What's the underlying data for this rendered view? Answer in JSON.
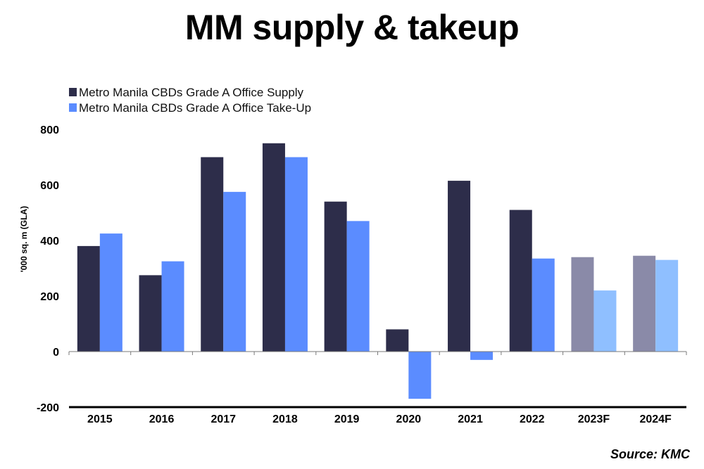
{
  "chart_data": {
    "type": "bar",
    "title": "MM supply & takeup",
    "ylabel": "'000 sq. m (GLA)",
    "xlabel": "",
    "ylim": [
      -200,
      800
    ],
    "yticks": [
      -200,
      0,
      200,
      400,
      600,
      800
    ],
    "grid": false,
    "legend_position": "top-left",
    "categories": [
      "2015",
      "2016",
      "2017",
      "2018",
      "2019",
      "2020",
      "2021",
      "2022",
      "2023F",
      "2024F"
    ],
    "series": [
      {
        "name": "Metro Manila CBDs Grade A Office Supply",
        "color": "#2d2d4a",
        "forecast_color": "#8a8aa8",
        "values": [
          380,
          275,
          700,
          750,
          540,
          80,
          615,
          510,
          340,
          345
        ]
      },
      {
        "name": "Metro Manila CBDs Grade A Office Take-Up",
        "color": "#5b8cff",
        "forecast_color": "#8fbfff",
        "values": [
          425,
          325,
          575,
          700,
          470,
          -170,
          -30,
          335,
          220,
          330
        ]
      }
    ],
    "forecast_categories": [
      "2023F",
      "2024F"
    ],
    "source": "Source: KMC"
  }
}
